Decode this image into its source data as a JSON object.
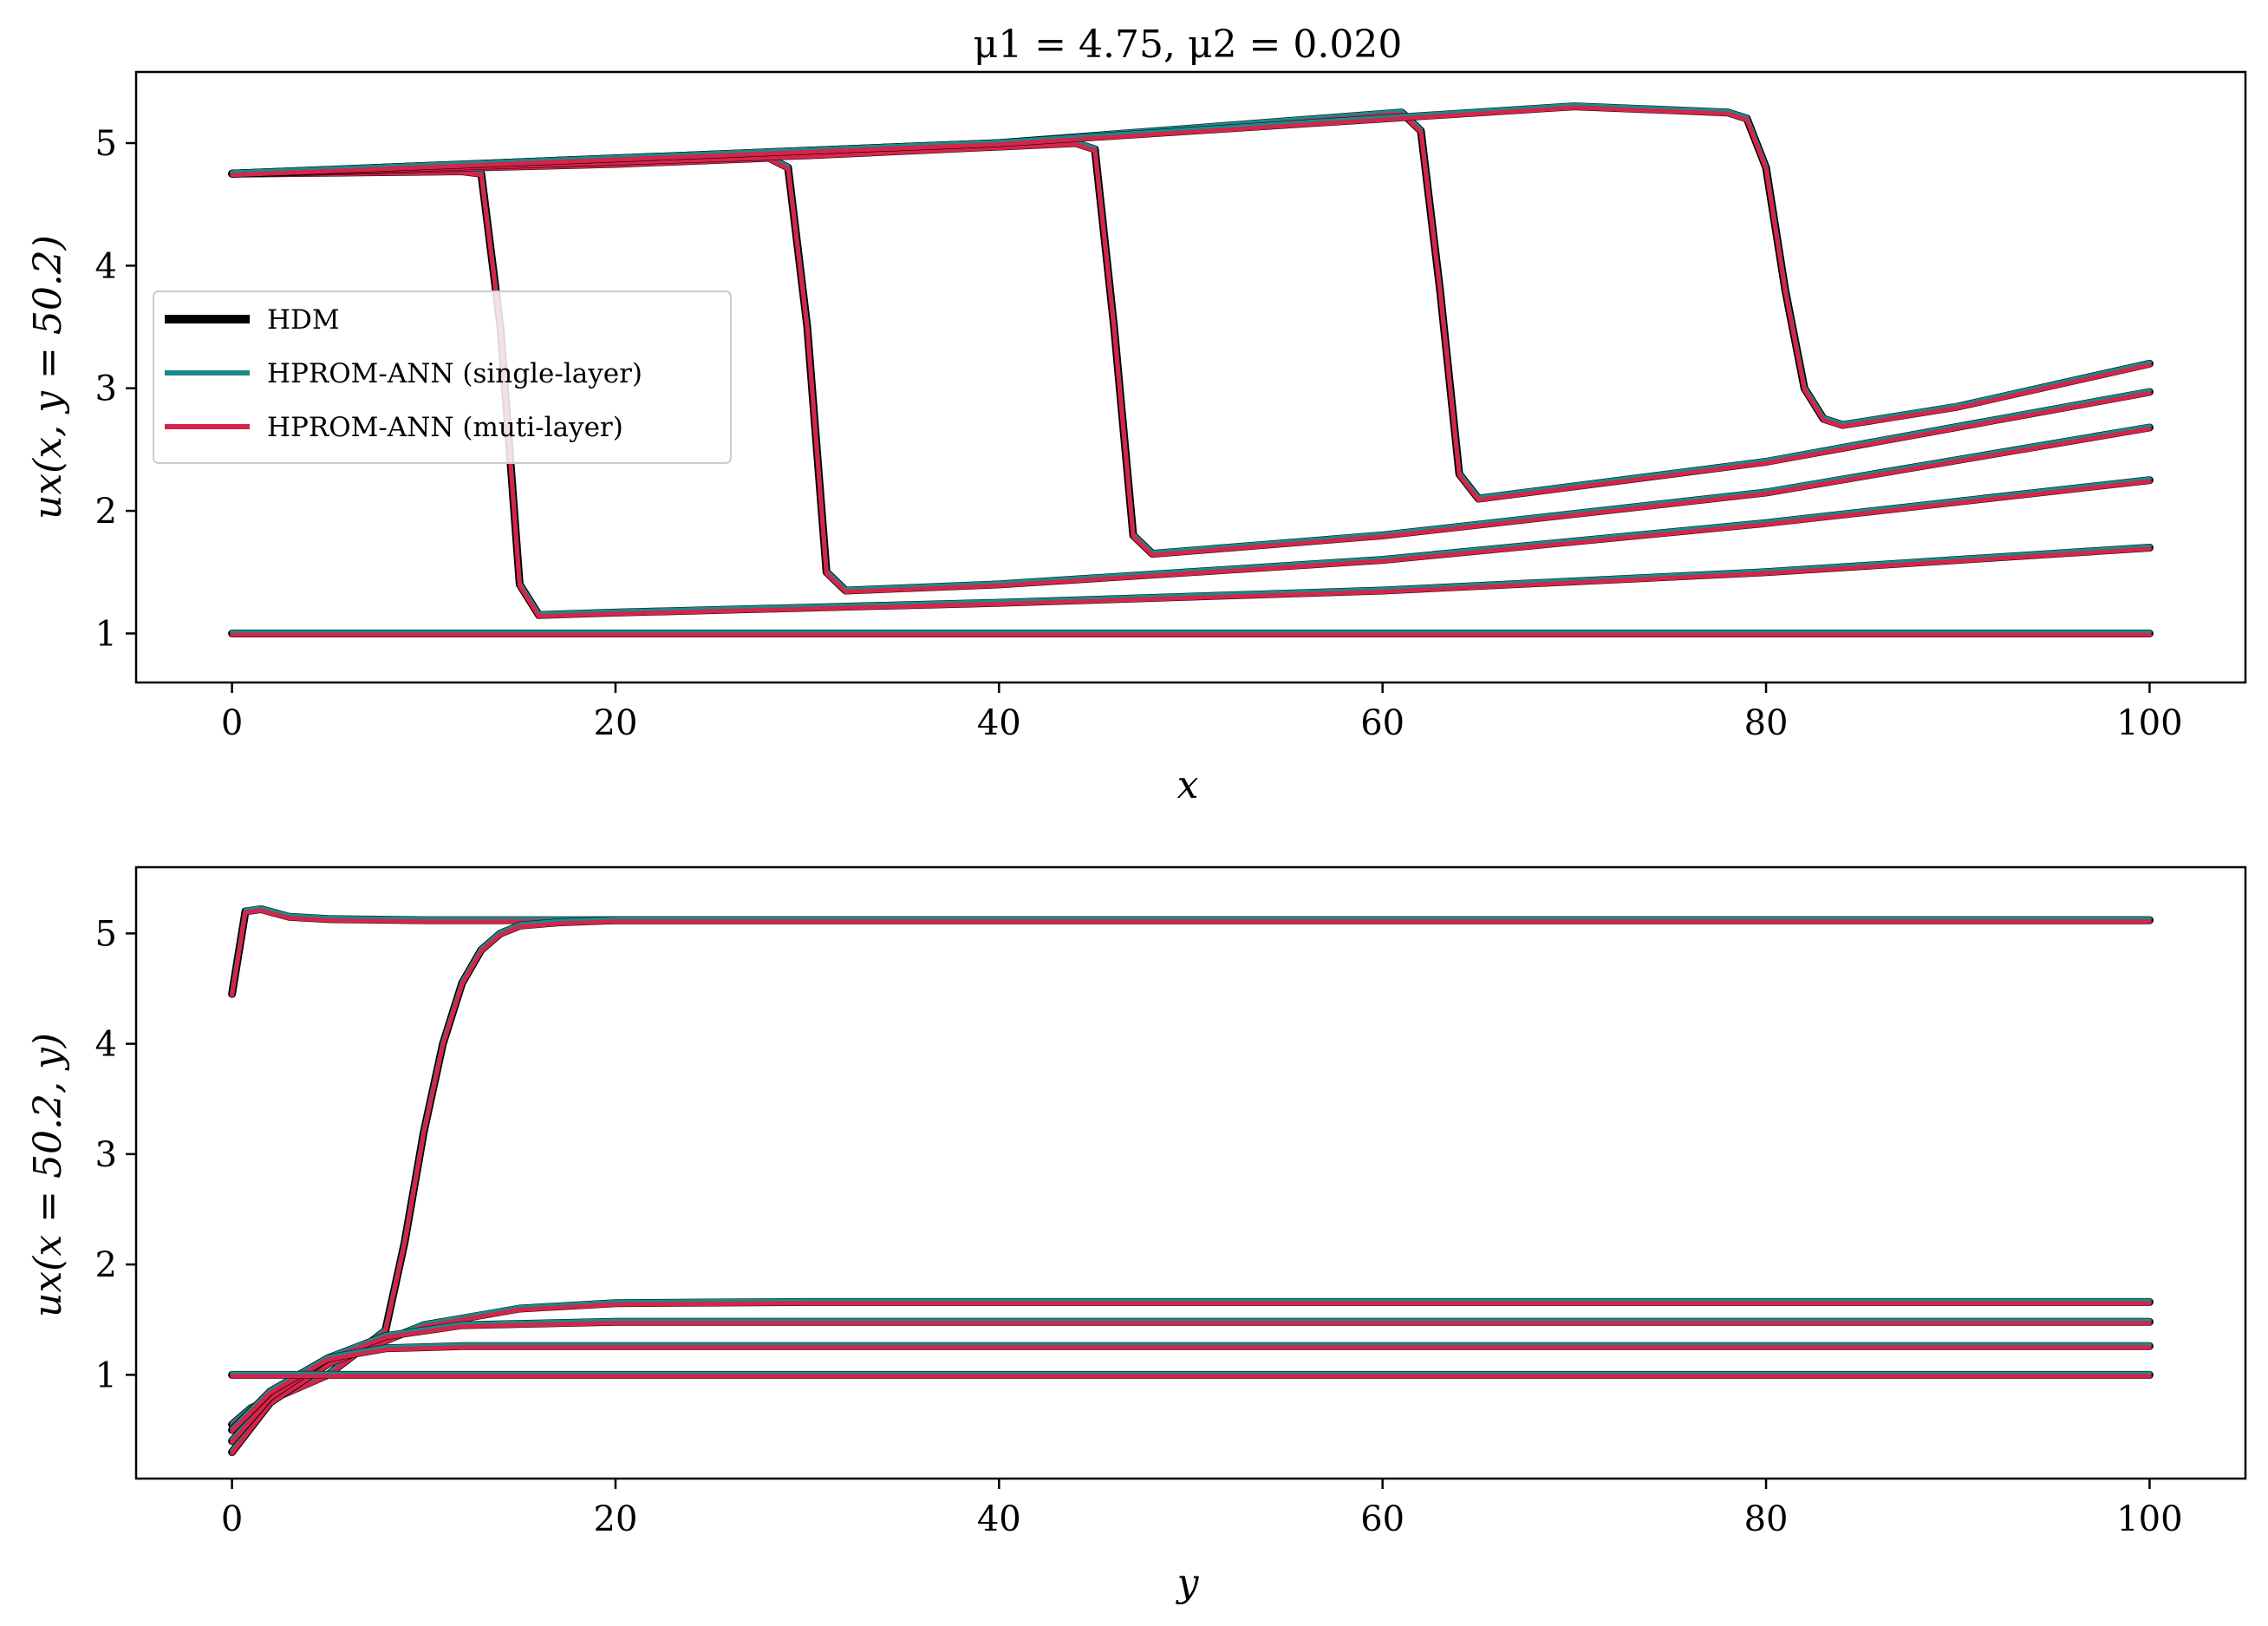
{
  "chart_data": [
    {
      "type": "line",
      "title": "μ1 = 4.75, μ2 = 0.020",
      "xlabel": "x",
      "ylabel": "ux(x, y = 50.2)",
      "xlim": [
        -5,
        105
      ],
      "ylim": [
        0.6,
        5.58
      ],
      "xticks": [
        0,
        20,
        40,
        60,
        80,
        100
      ],
      "yticks": [
        1,
        2,
        3,
        4,
        5
      ],
      "grid": false,
      "legend_position": "center-left",
      "legend": [
        {
          "label": "HDM",
          "color": "#000000"
        },
        {
          "label": "HPROM-ANN (single-layer)",
          "color": "#1a8a8a"
        },
        {
          "label": "HPROM-ANN (muti-layer)",
          "color": "#d6244a"
        }
      ],
      "series": [
        {
          "x": [
            0,
            2,
            50,
            100
          ],
          "values": [
            1.0,
            1.0,
            1.0,
            1.0
          ]
        },
        {
          "x": [
            0,
            12,
            13,
            14,
            15,
            16,
            20,
            40,
            60,
            80,
            100
          ],
          "values": [
            4.75,
            4.77,
            4.75,
            3.5,
            1.4,
            1.15,
            1.17,
            1.25,
            1.35,
            1.5,
            1.7
          ]
        },
        {
          "x": [
            0,
            20,
            28,
            29,
            30,
            31,
            32,
            40,
            60,
            80,
            100
          ],
          "values": [
            4.75,
            4.83,
            4.88,
            4.8,
            3.5,
            1.5,
            1.35,
            1.4,
            1.6,
            1.9,
            2.25
          ]
        },
        {
          "x": [
            0,
            30,
            44,
            45,
            46,
            47,
            48,
            60,
            80,
            100
          ],
          "values": [
            4.75,
            4.9,
            5.0,
            4.95,
            3.5,
            1.8,
            1.65,
            1.8,
            2.15,
            2.68
          ]
        },
        {
          "x": [
            0,
            40,
            61,
            62,
            63,
            64,
            65,
            80,
            100
          ],
          "values": [
            4.75,
            5.0,
            5.25,
            5.1,
            3.8,
            2.3,
            2.1,
            2.4,
            2.97
          ]
        },
        {
          "x": [
            0,
            40,
            60,
            70,
            78,
            79,
            80,
            81,
            82,
            83,
            84,
            86,
            90,
            100
          ],
          "values": [
            4.75,
            5.0,
            5.2,
            5.3,
            5.25,
            5.2,
            4.8,
            3.8,
            3.0,
            2.75,
            2.7,
            2.75,
            2.85,
            3.2
          ]
        }
      ]
    },
    {
      "type": "line",
      "xlabel": "y",
      "ylabel": "ux(x = 50.2, y)",
      "xlim": [
        -5,
        105
      ],
      "ylim": [
        0.06,
        5.6
      ],
      "xticks": [
        0,
        20,
        40,
        60,
        80,
        100
      ],
      "yticks": [
        1,
        2,
        3,
        4,
        5
      ],
      "grid": false,
      "series": [
        {
          "x": [
            0,
            0.7,
            1.5,
            3,
            5,
            10,
            20,
            100
          ],
          "values": [
            4.45,
            5.2,
            5.22,
            5.15,
            5.13,
            5.12,
            5.12,
            5.12
          ]
        },
        {
          "x": [
            0,
            1,
            5,
            8,
            9,
            10,
            11,
            12,
            13,
            14,
            15,
            17,
            20,
            30,
            100
          ],
          "values": [
            0.55,
            0.7,
            1.0,
            1.4,
            2.2,
            3.2,
            4.0,
            4.55,
            4.85,
            5.0,
            5.07,
            5.1,
            5.12,
            5.12,
            5.12
          ]
        },
        {
          "x": [
            0,
            2,
            5,
            10,
            15,
            20,
            30,
            100
          ],
          "values": [
            0.3,
            0.75,
            1.1,
            1.45,
            1.6,
            1.65,
            1.66,
            1.66
          ]
        },
        {
          "x": [
            0,
            2,
            5,
            8,
            12,
            20,
            100
          ],
          "values": [
            0.4,
            0.8,
            1.15,
            1.35,
            1.45,
            1.48,
            1.48
          ]
        },
        {
          "x": [
            0,
            2,
            5,
            8,
            12,
            100
          ],
          "values": [
            0.5,
            0.85,
            1.15,
            1.24,
            1.26,
            1.26
          ]
        },
        {
          "x": [
            0,
            0.5,
            100
          ],
          "values": [
            1.0,
            1.0,
            1.0
          ]
        }
      ]
    }
  ]
}
